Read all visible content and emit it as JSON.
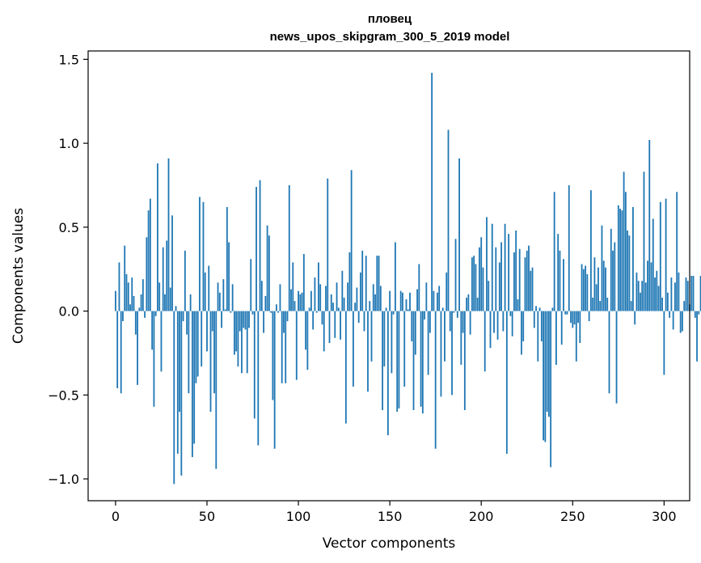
{
  "chart_data": {
    "type": "bar",
    "title": "пловец",
    "subtitle": "news_upos_skipgram_300_5_2019 model",
    "xlabel": "Vector components",
    "ylabel": "Components values",
    "xlim": [
      -15,
      314
    ],
    "ylim": [
      -1.13,
      1.55
    ],
    "xticks": [
      0,
      50,
      100,
      150,
      200,
      250,
      300
    ],
    "xtick_labels": [
      "0",
      "50",
      "100",
      "150",
      "200",
      "250",
      "300"
    ],
    "yticks": [
      -1.0,
      -0.5,
      0.0,
      0.5,
      1.0,
      1.5
    ],
    "ytick_labels": [
      "−1.0",
      "−0.5",
      "0.0",
      "0.5",
      "1.0",
      "1.5"
    ],
    "grid": false,
    "bar_color": "#1f77b4",
    "values": [
      0.12,
      -0.46,
      0.29,
      -0.49,
      -0.06,
      0.39,
      0.22,
      0.17,
      0.04,
      0.2,
      0.09,
      -0.14,
      -0.44,
      0.02,
      0.1,
      0.19,
      -0.04,
      0.44,
      0.6,
      0.67,
      -0.23,
      -0.57,
      -0.03,
      0.88,
      0.17,
      -0.36,
      0.38,
      0.1,
      0.42,
      0.91,
      0.14,
      0.57,
      -1.03,
      0.03,
      -0.85,
      -0.6,
      -0.98,
      -0.06,
      0.36,
      -0.14,
      -0.49,
      0.1,
      -0.87,
      -0.79,
      -0.43,
      -0.39,
      0.68,
      -0.33,
      0.65,
      0.23,
      -0.24,
      0.27,
      -0.6,
      -0.12,
      -0.49,
      -0.94,
      0.17,
      0.11,
      -0.1,
      0.19,
      0.01,
      0.62,
      0.41,
      -0.01,
      0.16,
      -0.26,
      -0.24,
      -0.33,
      -0.12,
      -0.37,
      -0.1,
      -0.11,
      -0.37,
      -0.1,
      0.31,
      -0.02,
      -0.64,
      0.74,
      -0.8,
      0.78,
      0.18,
      -0.13,
      0.09,
      0.51,
      0.45,
      -0.01,
      -0.53,
      -0.82,
      0.04,
      -0.01,
      0.16,
      -0.43,
      -0.13,
      -0.43,
      -0.06,
      0.75,
      0.13,
      0.29,
      0.06,
      -0.41,
      0.12,
      0.1,
      0.11,
      0.34,
      -0.23,
      -0.35,
      0.02,
      0.12,
      -0.11,
      0.2,
      -0.01,
      0.29,
      0.16,
      -0.08,
      -0.24,
      0.15,
      0.79,
      -0.19,
      0.1,
      0.05,
      -0.16,
      0.17,
      0.02,
      -0.17,
      0.24,
      0.08,
      -0.67,
      0.17,
      0.35,
      0.84,
      -0.45,
      0.05,
      0.14,
      -0.07,
      0.23,
      0.36,
      -0.12,
      0.33,
      -0.48,
      0.06,
      -0.3,
      0.16,
      0.1,
      0.33,
      0.33,
      0.15,
      -0.59,
      -0.33,
      0.02,
      -0.74,
      0.12,
      -0.37,
      -0.02,
      0.41,
      -0.6,
      -0.58,
      0.12,
      0.11,
      -0.45,
      0.07,
      0.01,
      0.11,
      -0.18,
      -0.59,
      -0.26,
      0.13,
      0.28,
      -0.57,
      -0.61,
      -0.05,
      0.17,
      -0.38,
      -0.13,
      1.42,
      0.12,
      -0.82,
      0.11,
      0.15,
      -0.51,
      0.02,
      -0.3,
      0.23,
      1.08,
      -0.12,
      -0.5,
      -0.01,
      0.43,
      -0.04,
      0.91,
      -0.32,
      -0.13,
      -0.59,
      0.08,
      0.1,
      -0.14,
      0.32,
      0.33,
      0.28,
      0.08,
      0.38,
      0.44,
      0.26,
      -0.36,
      0.56,
      0.18,
      -0.22,
      0.52,
      -0.13,
      0.38,
      -0.17,
      0.29,
      0.41,
      -0.12,
      0.52,
      -0.85,
      0.46,
      -0.03,
      -0.15,
      0.35,
      0.48,
      0.07,
      0.37,
      -0.26,
      -0.18,
      0.32,
      0.36,
      0.39,
      0.24,
      0.26,
      -0.1,
      0.03,
      -0.3,
      0.02,
      -0.18,
      -0.77,
      -0.78,
      -0.6,
      -0.63,
      -0.93,
      0.02,
      0.71,
      -0.32,
      0.46,
      0.36,
      -0.2,
      0.31,
      -0.02,
      -0.02,
      0.75,
      -0.07,
      -0.1,
      -0.08,
      -0.3,
      -0.07,
      -0.19,
      0.28,
      0.25,
      0.27,
      0.22,
      -0.06,
      0.72,
      0.08,
      0.32,
      0.16,
      0.26,
      0.06,
      0.51,
      0.3,
      0.26,
      0.08,
      -0.49,
      0.49,
      0.36,
      0.41,
      -0.55,
      0.63,
      0.61,
      0.6,
      0.83,
      0.71,
      0.48,
      0.45,
      0.06,
      0.62,
      -0.08,
      0.23,
      0.18,
      0.11,
      0.18,
      0.83,
      0.17,
      0.3,
      1.02,
      0.29,
      0.55,
      0.2,
      0.24,
      0.15,
      0.65,
      0.08,
      -0.38,
      0.67,
      0.11,
      -0.04,
      0.2,
      -0.11,
      0.17,
      0.71,
      0.23,
      -0.13,
      -0.12,
      0.06,
      0.2,
      0.18,
      0.04,
      0.21,
      0.21,
      -0.04,
      -0.3,
      -0.02,
      0.21,
      0.18,
      0.15,
      0.47
    ]
  }
}
